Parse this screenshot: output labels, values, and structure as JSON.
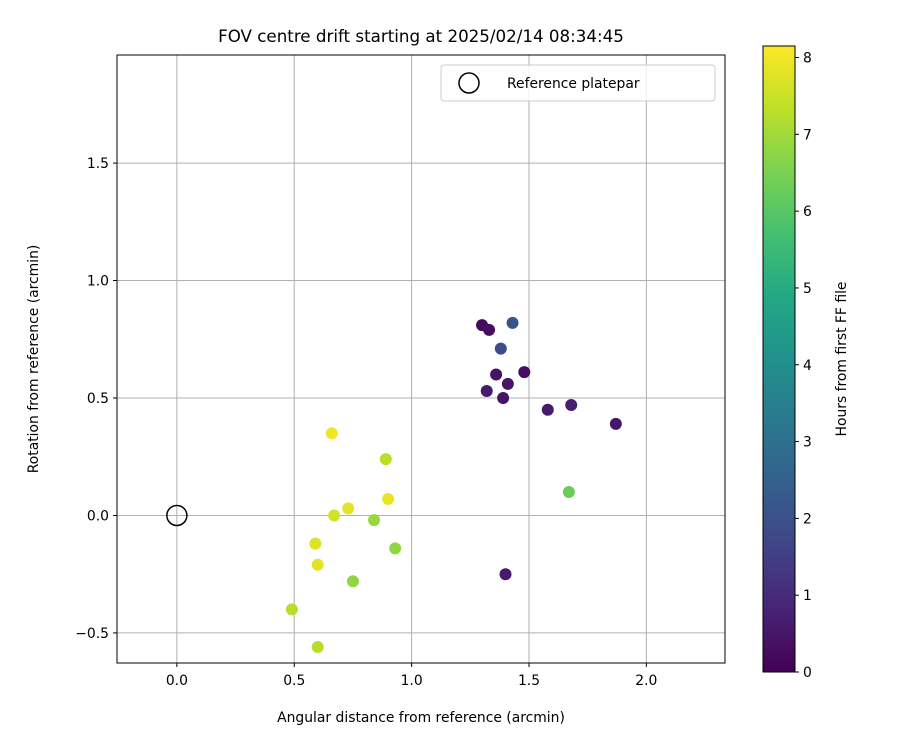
{
  "chart_data": {
    "type": "scatter",
    "title": "FOV centre drift starting at 2025/02/14 08:34:45",
    "xlabel": "Angular distance from reference (arcmin)",
    "ylabel": "Rotation from reference (arcmin)",
    "xlim": [
      -0.255,
      2.335
    ],
    "ylim": [
      -0.628,
      1.96
    ],
    "xticks": [
      0.0,
      0.5,
      1.0,
      1.5,
      2.0
    ],
    "xtick_labels": [
      "0.0",
      "0.5",
      "1.0",
      "1.5",
      "2.0"
    ],
    "yticks": [
      -0.5,
      0.0,
      0.5,
      1.0,
      1.5
    ],
    "ytick_labels": [
      "−0.5",
      "0.0",
      "0.5",
      "1.0",
      "1.5"
    ],
    "grid": true,
    "legend": {
      "placement": "top-right",
      "entries": [
        "Reference platepar"
      ]
    },
    "reference_point": {
      "x": 0.0,
      "y": 0.0,
      "label": "Reference platepar"
    },
    "colorbar": {
      "label": "Hours from first FF file",
      "range": [
        0,
        8.15
      ],
      "ticks": [
        0,
        1,
        2,
        3,
        4,
        5,
        6,
        7,
        8
      ],
      "tick_labels": [
        "0",
        "1",
        "2",
        "3",
        "4",
        "5",
        "6",
        "7",
        "8"
      ],
      "colormap": "viridis"
    },
    "points": [
      {
        "x": 1.3,
        "y": 0.81,
        "c": 0.2
      },
      {
        "x": 1.33,
        "y": 0.79,
        "c": 0.3
      },
      {
        "x": 1.43,
        "y": 0.82,
        "c": 2.1
      },
      {
        "x": 1.38,
        "y": 0.71,
        "c": 1.9
      },
      {
        "x": 1.36,
        "y": 0.6,
        "c": 0.4
      },
      {
        "x": 1.48,
        "y": 0.61,
        "c": 0.3
      },
      {
        "x": 1.41,
        "y": 0.56,
        "c": 0.5
      },
      {
        "x": 1.32,
        "y": 0.53,
        "c": 0.6
      },
      {
        "x": 1.39,
        "y": 0.5,
        "c": 0.4
      },
      {
        "x": 1.58,
        "y": 0.45,
        "c": 0.6
      },
      {
        "x": 1.68,
        "y": 0.47,
        "c": 0.7
      },
      {
        "x": 1.87,
        "y": 0.39,
        "c": 0.5
      },
      {
        "x": 1.67,
        "y": 0.1,
        "c": 6.3
      },
      {
        "x": 1.4,
        "y": -0.25,
        "c": 0.6
      },
      {
        "x": 0.66,
        "y": 0.35,
        "c": 8.0
      },
      {
        "x": 0.89,
        "y": 0.24,
        "c": 7.3
      },
      {
        "x": 0.9,
        "y": 0.07,
        "c": 7.9
      },
      {
        "x": 0.73,
        "y": 0.03,
        "c": 7.8
      },
      {
        "x": 0.67,
        "y": 0.0,
        "c": 7.6
      },
      {
        "x": 0.84,
        "y": -0.02,
        "c": 6.9
      },
      {
        "x": 0.93,
        "y": -0.14,
        "c": 6.8
      },
      {
        "x": 0.59,
        "y": -0.12,
        "c": 7.7
      },
      {
        "x": 0.6,
        "y": -0.21,
        "c": 7.8
      },
      {
        "x": 0.75,
        "y": -0.28,
        "c": 6.8
      },
      {
        "x": 0.49,
        "y": -0.4,
        "c": 7.3
      },
      {
        "x": 0.6,
        "y": -0.56,
        "c": 7.3
      }
    ]
  }
}
